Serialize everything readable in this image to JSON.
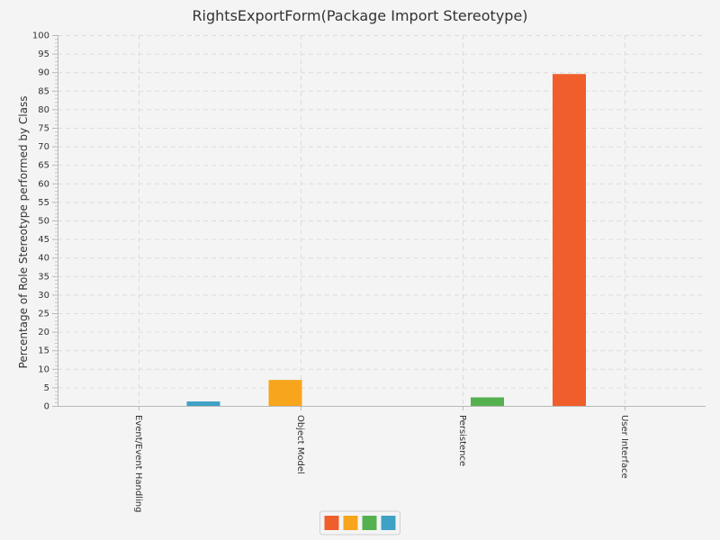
{
  "chart_data": {
    "type": "bar",
    "title": "RightsExportForm(Package Import Stereotype)",
    "ylabel": "Percentage of Role Stereotype performed by Class",
    "xlabel": "",
    "ylim": [
      0,
      100
    ],
    "yticks": [
      0,
      5,
      10,
      15,
      20,
      25,
      30,
      35,
      40,
      45,
      50,
      55,
      60,
      65,
      70,
      75,
      80,
      85,
      90,
      95,
      100
    ],
    "grid": true,
    "legend_placement": "bottom-center",
    "categories": [
      "Event/Event Handling",
      "Object Model",
      "Persistence",
      "User Interface"
    ],
    "series": [
      {
        "color": "#f05e2c",
        "values": [
          0,
          0,
          0,
          89.5
        ]
      },
      {
        "color": "#f7a51c",
        "values": [
          0,
          7,
          0,
          0
        ]
      },
      {
        "color": "#55b150",
        "values": [
          0,
          0,
          2.3,
          0
        ]
      },
      {
        "color": "#3fa1c4",
        "values": [
          1.2,
          0,
          0,
          0
        ]
      }
    ]
  }
}
